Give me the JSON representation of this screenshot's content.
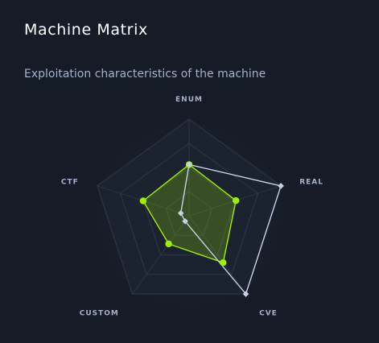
{
  "card": {
    "title": "Machine Matrix",
    "subtitle": "Exploitation characteristics of the machine"
  },
  "chart_data": {
    "type": "radar",
    "axes": [
      "ENUM",
      "REAL",
      "CVE",
      "CUSTOM",
      "CTF"
    ],
    "rmax": 10,
    "rings": 4,
    "series": [
      {
        "values": [
          5.3,
          5.1,
          6.0,
          3.6,
          5.0
        ],
        "color": "#9fef00",
        "fill": "rgba(159,239,0,0.22)",
        "marker": "circle"
      },
      {
        "values": [
          5.3,
          10.0,
          10.0,
          0.7,
          0.9
        ],
        "color": "#c8d0e6",
        "fill": "none",
        "marker": "diamond"
      }
    ],
    "colors": {
      "background": "#151c27",
      "grid": "#2b3445",
      "accent": "#9fef00",
      "secondary": "#c8d0e6"
    }
  }
}
